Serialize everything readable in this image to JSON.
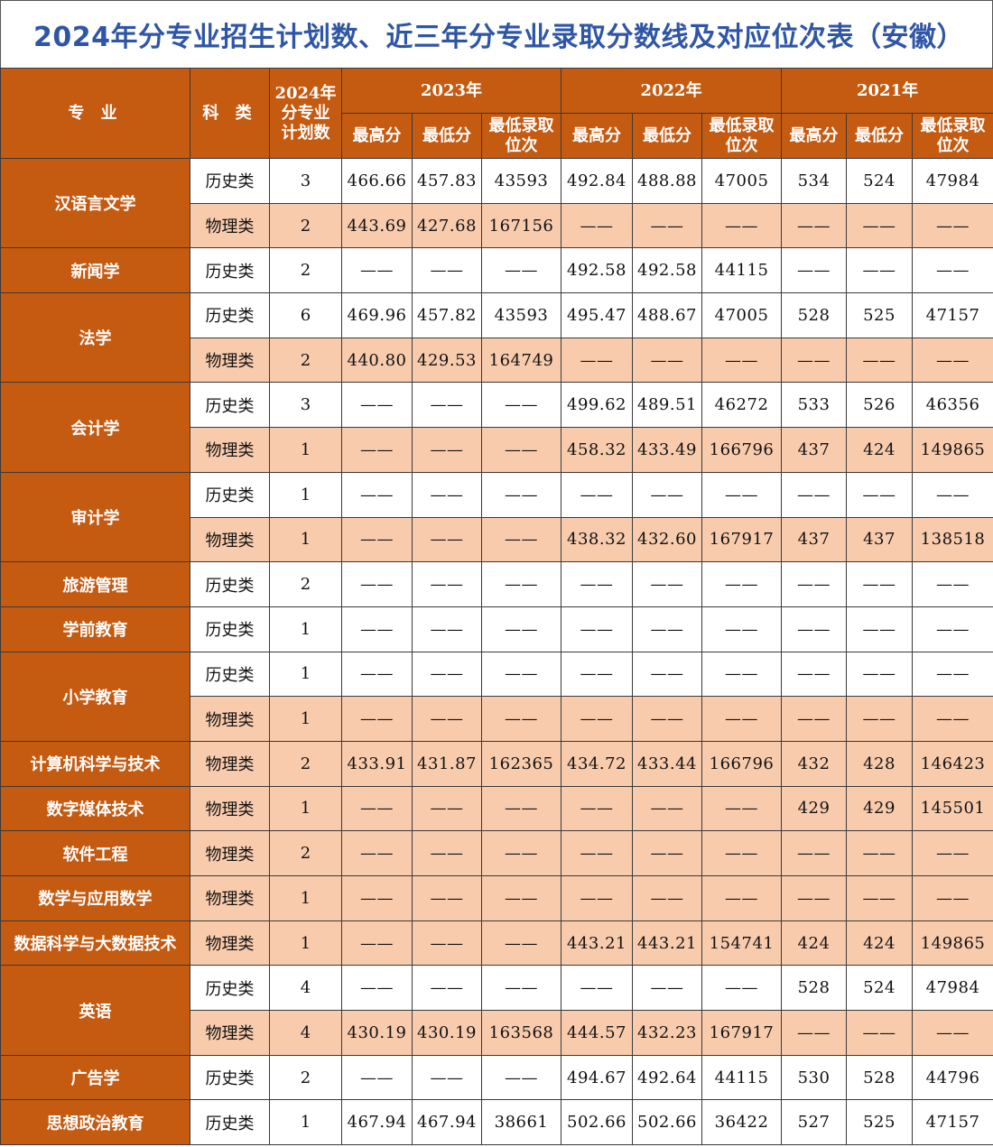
{
  "title": "2024年分专业招生计划数、近三年分专业录取分数线及对应位次表（安徽）",
  "header": {
    "major": "专 业",
    "type": "科 类",
    "plan": [
      "2024年",
      "分专业",
      "计划数"
    ],
    "years": [
      "2023年",
      "2022年",
      "2021年"
    ],
    "sub": [
      "最高分",
      "最低分",
      "最低录取位次"
    ]
  },
  "majors": [
    {
      "name": "汉语言文学",
      "rows": [
        {
          "type": "历史类",
          "plan": "3",
          "cells": [
            "466.66",
            "457.83",
            "43593",
            "492.84",
            "488.88",
            "47005",
            "534",
            "524",
            "47984"
          ]
        },
        {
          "type": "物理类",
          "plan": "2",
          "cells": [
            "443.69",
            "427.68",
            "167156",
            "——",
            "——",
            "——",
            "——",
            "——",
            "——"
          ]
        }
      ]
    },
    {
      "name": "新闻学",
      "rows": [
        {
          "type": "历史类",
          "plan": "2",
          "cells": [
            "——",
            "——",
            "——",
            "492.58",
            "492.58",
            "44115",
            "——",
            "——",
            "——"
          ]
        }
      ]
    },
    {
      "name": "法学",
      "rows": [
        {
          "type": "历史类",
          "plan": "6",
          "cells": [
            "469.96",
            "457.82",
            "43593",
            "495.47",
            "488.67",
            "47005",
            "528",
            "525",
            "47157"
          ]
        },
        {
          "type": "物理类",
          "plan": "2",
          "cells": [
            "440.80",
            "429.53",
            "164749",
            "——",
            "——",
            "——",
            "——",
            "——",
            "——"
          ]
        }
      ]
    },
    {
      "name": "会计学",
      "rows": [
        {
          "type": "历史类",
          "plan": "3",
          "cells": [
            "——",
            "——",
            "——",
            "499.62",
            "489.51",
            "46272",
            "533",
            "526",
            "46356"
          ]
        },
        {
          "type": "物理类",
          "plan": "1",
          "cells": [
            "——",
            "——",
            "——",
            "458.32",
            "433.49",
            "166796",
            "437",
            "424",
            "149865"
          ]
        }
      ]
    },
    {
      "name": "审计学",
      "rows": [
        {
          "type": "历史类",
          "plan": "1",
          "cells": [
            "——",
            "——",
            "——",
            "——",
            "——",
            "——",
            "——",
            "——",
            "——"
          ]
        },
        {
          "type": "物理类",
          "plan": "1",
          "cells": [
            "——",
            "——",
            "——",
            "438.32",
            "432.60",
            "167917",
            "437",
            "437",
            "138518"
          ]
        }
      ]
    },
    {
      "name": "旅游管理",
      "rows": [
        {
          "type": "历史类",
          "plan": "2",
          "cells": [
            "——",
            "——",
            "——",
            "——",
            "——",
            "——",
            "——",
            "——",
            "——"
          ]
        }
      ]
    },
    {
      "name": "学前教育",
      "rows": [
        {
          "type": "历史类",
          "plan": "1",
          "cells": [
            "——",
            "——",
            "——",
            "——",
            "——",
            "——",
            "——",
            "——",
            "——"
          ]
        }
      ]
    },
    {
      "name": "小学教育",
      "rows": [
        {
          "type": "历史类",
          "plan": "1",
          "cells": [
            "——",
            "——",
            "——",
            "——",
            "——",
            "——",
            "——",
            "——",
            "——"
          ]
        },
        {
          "type": "物理类",
          "plan": "1",
          "cells": [
            "——",
            "——",
            "——",
            "——",
            "——",
            "——",
            "——",
            "——",
            "——"
          ]
        }
      ]
    },
    {
      "name": "计算机科学与技术",
      "rows": [
        {
          "type": "物理类",
          "plan": "2",
          "cells": [
            "433.91",
            "431.87",
            "162365",
            "434.72",
            "433.44",
            "166796",
            "432",
            "428",
            "146423"
          ]
        }
      ]
    },
    {
      "name": "数字媒体技术",
      "rows": [
        {
          "type": "物理类",
          "plan": "1",
          "cells": [
            "——",
            "——",
            "——",
            "——",
            "——",
            "——",
            "429",
            "429",
            "145501"
          ]
        }
      ]
    },
    {
      "name": "软件工程",
      "rows": [
        {
          "type": "物理类",
          "plan": "2",
          "cells": [
            "——",
            "——",
            "——",
            "——",
            "——",
            "——",
            "——",
            "——",
            "——"
          ]
        }
      ]
    },
    {
      "name": "数学与应用数学",
      "rows": [
        {
          "type": "物理类",
          "plan": "1",
          "cells": [
            "——",
            "——",
            "——",
            "——",
            "——",
            "——",
            "——",
            "——",
            "——"
          ]
        }
      ]
    },
    {
      "name": "数据科学与大数据技术",
      "rows": [
        {
          "type": "物理类",
          "plan": "1",
          "cells": [
            "——",
            "——",
            "——",
            "443.21",
            "443.21",
            "154741",
            "424",
            "424",
            "149865"
          ]
        }
      ]
    },
    {
      "name": "英语",
      "rows": [
        {
          "type": "历史类",
          "plan": "4",
          "cells": [
            "——",
            "——",
            "——",
            "——",
            "——",
            "——",
            "528",
            "524",
            "47984"
          ]
        },
        {
          "type": "物理类",
          "plan": "4",
          "cells": [
            "430.19",
            "430.19",
            "163568",
            "444.57",
            "432.23",
            "167917",
            "——",
            "——",
            "——"
          ]
        }
      ]
    },
    {
      "name": "广告学",
      "rows": [
        {
          "type": "历史类",
          "plan": "2",
          "cells": [
            "——",
            "——",
            "——",
            "494.67",
            "492.64",
            "44115",
            "530",
            "528",
            "44796"
          ]
        }
      ]
    },
    {
      "name": "思想政治教育",
      "rows": [
        {
          "type": "历史类",
          "plan": "1",
          "cells": [
            "467.94",
            "467.94",
            "38661",
            "502.66",
            "502.66",
            "36422",
            "527",
            "525",
            "47157"
          ]
        }
      ]
    }
  ]
}
